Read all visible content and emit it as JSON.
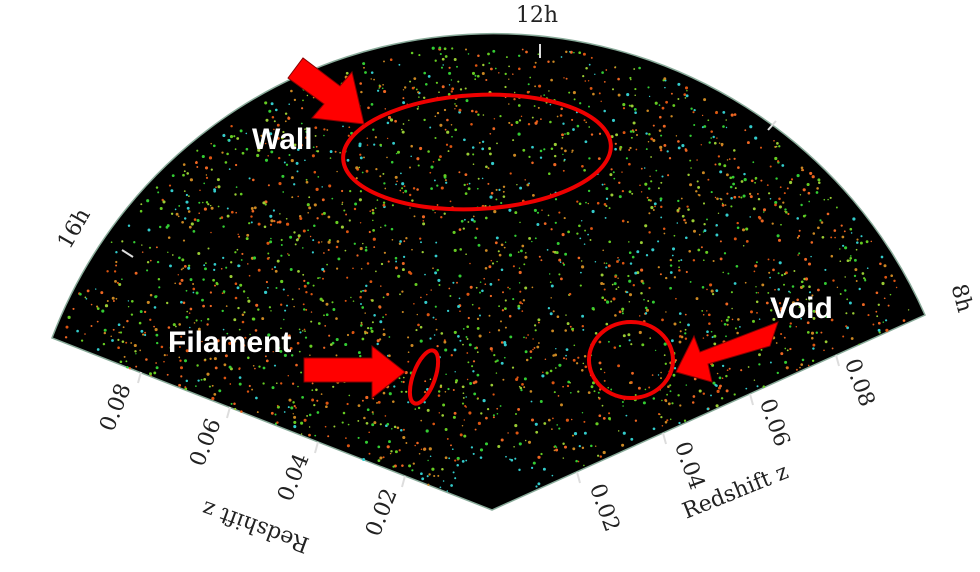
{
  "hour_labels": [
    "12h",
    "16h",
    "8h"
  ],
  "left_axis": {
    "title": "Redshift z",
    "ticks": [
      "0.08",
      "0.06",
      "0.04",
      "0.02"
    ]
  },
  "right_axis": {
    "title": "Redshift z",
    "ticks": [
      "0.02",
      "0.04",
      "0.06",
      "0.08"
    ]
  },
  "annotations": {
    "wall": "Wall",
    "filament": "Filament",
    "void": "Void"
  }
}
